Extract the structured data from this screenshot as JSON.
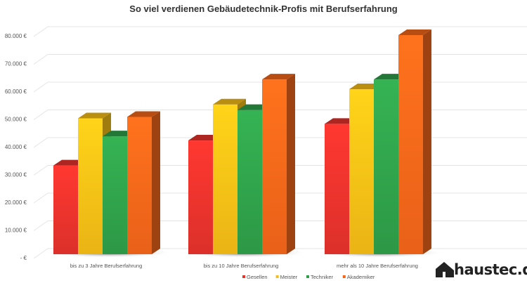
{
  "chart_data": {
    "type": "bar",
    "title": "So viel verdienen Gebäudetechnik-Profis mit Berufserfahrung",
    "categories": [
      "bis zu 3 Jahre Berufserfahrung",
      "bis zu 10 Jahre Berufserfahrung",
      "mehr als 10 Jahre Berufserfahrung"
    ],
    "series": [
      {
        "name": "Gesellen",
        "color": "#e8322c",
        "values": [
          32000,
          41000,
          47000
        ]
      },
      {
        "name": "Meister",
        "color": "#f6bd16",
        "values": [
          49000,
          54000,
          59500
        ]
      },
      {
        "name": "Techniker",
        "color": "#2fa04a",
        "values": [
          42500,
          52000,
          63000
        ]
      },
      {
        "name": "Akademiker",
        "color": "#f5661a",
        "values": [
          49500,
          63000,
          79000
        ]
      }
    ],
    "yticks": [
      "-   €",
      "10.000 €",
      "20.000 €",
      "30.000 €",
      "40.000 €",
      "50.000 €",
      "60.000 €",
      "70.000 €",
      "80.000 €"
    ],
    "ylim": [
      0,
      80000
    ],
    "grid": true,
    "legend": "bottom"
  },
  "logo": {
    "text": "haustec.de"
  }
}
